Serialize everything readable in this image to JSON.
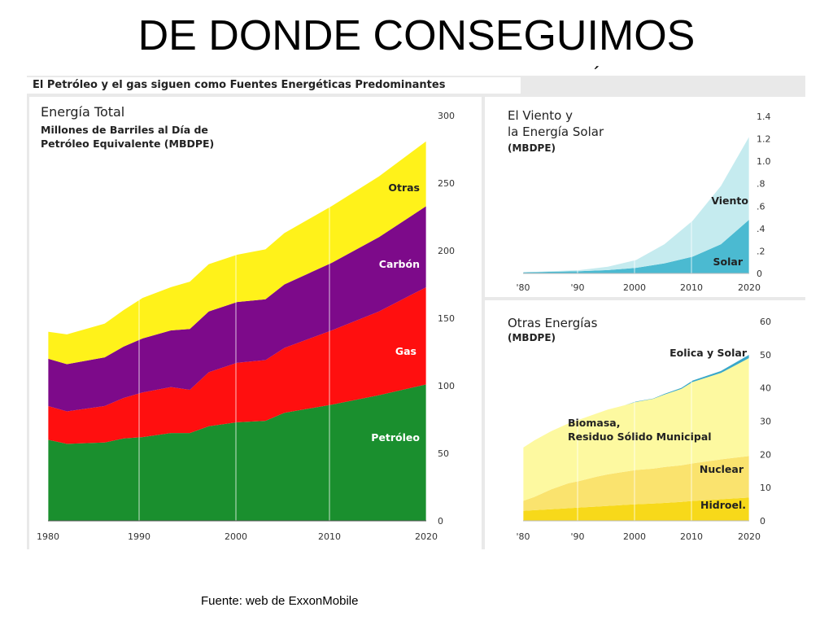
{
  "slide": {
    "title": "DE DONDE CONSEGUIMOS",
    "title_accent": "´",
    "source": "Fuente: web de ExxonMobile"
  },
  "banner": "El Petróleo y el gas siguen como Fuentes Energéticas Predominantes",
  "colors": {
    "petroleo": "#1a8f2e",
    "gas": "#ff0f0f",
    "carbon": "#7d0a8a",
    "otras": "#fff21a",
    "viento": "#c5ebef",
    "solar": "#4bbad1",
    "hidro": "#f7d91a",
    "nuclear": "#fae36e",
    "biomasa": "#fdf9a0",
    "eolica": "#3aa7c9"
  },
  "chart_data": [
    {
      "type": "area",
      "stacked": true,
      "title": "Energía Total",
      "subtitle": "Millones de Barriles al Día de Petróleo Equivalente (MBDPE)",
      "x_ticks": [
        "1980",
        "1990",
        "2000",
        "2010",
        "2020"
      ],
      "y_ticks": [
        "0",
        "50",
        "100",
        "150",
        "200",
        "250",
        "300"
      ],
      "xlim": [
        1980,
        2020
      ],
      "ylim": [
        0,
        300
      ],
      "grid": true,
      "x": [
        1980,
        1982,
        1986,
        1988,
        1990,
        1993,
        1995,
        1997,
        2000,
        2003,
        2005,
        2010,
        2015,
        2020
      ],
      "series": [
        {
          "name": "Petróleo",
          "values": [
            60,
            57,
            58,
            61,
            62,
            65,
            65,
            70,
            73,
            74,
            80,
            86,
            93,
            101
          ]
        },
        {
          "name": "Gas",
          "values": [
            25,
            24,
            27,
            30,
            33,
            34,
            32,
            40,
            44,
            45,
            48,
            55,
            62,
            72
          ]
        },
        {
          "name": "Carbón",
          "values": [
            35,
            35,
            36,
            38,
            40,
            42,
            45,
            45,
            45,
            45,
            47,
            50,
            55,
            60
          ]
        },
        {
          "name": "Otras",
          "values": [
            20,
            22,
            25,
            27,
            30,
            32,
            35,
            35,
            35,
            37,
            38,
            42,
            45,
            48
          ]
        }
      ]
    },
    {
      "type": "area",
      "stacked": true,
      "title": "El Viento y la Energía Solar",
      "subtitle": "(MBDPE)",
      "x_ticks": [
        "'80",
        "'90",
        "2000",
        "2010",
        "2020"
      ],
      "y_ticks": [
        "0",
        ".2",
        ".4",
        ".6",
        ".8",
        "1.0",
        "1.2",
        "1.4"
      ],
      "xlim": [
        1980,
        2020
      ],
      "ylim": [
        0,
        1.4
      ],
      "grid": true,
      "x": [
        1980,
        1990,
        1995,
        2000,
        2005,
        2010,
        2015,
        2020
      ],
      "series": [
        {
          "name": "Solar",
          "values": [
            0.01,
            0.02,
            0.03,
            0.05,
            0.09,
            0.15,
            0.26,
            0.48
          ]
        },
        {
          "name": "Viento",
          "values": [
            0.0,
            0.01,
            0.03,
            0.07,
            0.17,
            0.32,
            0.52,
            0.74
          ]
        }
      ]
    },
    {
      "type": "area",
      "stacked": true,
      "title": "Otras Energías",
      "subtitle": "(MBDPE)",
      "x_ticks": [
        "'80",
        "'90",
        "2000",
        "2010",
        "2020"
      ],
      "y_ticks": [
        "0",
        "10",
        "20",
        "30",
        "40",
        "50",
        "60"
      ],
      "xlim": [
        1980,
        2020
      ],
      "ylim": [
        0,
        60
      ],
      "grid": true,
      "x": [
        1980,
        1982,
        1985,
        1988,
        1990,
        1993,
        1995,
        1998,
        2000,
        2003,
        2005,
        2008,
        2010,
        2015,
        2020
      ],
      "series": [
        {
          "name": "Hidroel.",
          "values": [
            3,
            3.2,
            3.5,
            3.8,
            4,
            4.3,
            4.5,
            4.8,
            5,
            5.2,
            5.4,
            5.7,
            6,
            6.5,
            7
          ]
        },
        {
          "name": "Nuclear",
          "values": [
            3,
            4,
            6,
            7.5,
            8,
            9,
            9.5,
            10,
            10.3,
            10.5,
            10.8,
            11,
            11.3,
            12,
            12.5
          ]
        },
        {
          "name": "Biomasa, Residuo Sólido Municipal",
          "values": [
            16,
            17,
            17.5,
            18,
            18.5,
            19,
            19.5,
            20,
            20.5,
            21,
            21.8,
            23,
            24.5,
            26,
            29.5
          ]
        },
        {
          "name": "Eolica y Solar",
          "values": [
            0,
            0,
            0,
            0,
            0,
            0,
            0,
            0,
            0.1,
            0.1,
            0.2,
            0.3,
            0.4,
            0.6,
            1
          ]
        }
      ],
      "series_labels": [
        "Hidroel.",
        "Nuclear",
        "Biomasa,",
        "Residuo Sólido Municipal",
        "Eolica y Solar"
      ]
    }
  ]
}
